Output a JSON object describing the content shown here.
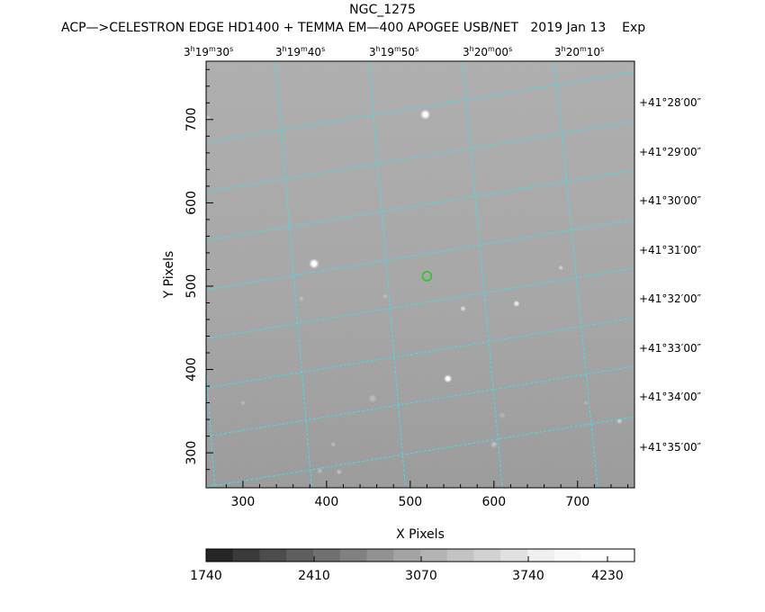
{
  "header": {
    "title": "NGC_1275",
    "subtitle": "ACP—>CELESTRON EDGE HD1400 + TEMMA EM—400 APOGEE USB/NET   2019 Jan 13    Exp"
  },
  "axes": {
    "xlabel": "X Pixels",
    "ylabel": "Y Pixels",
    "xlim": [
      256,
      768
    ],
    "ylim": [
      258,
      770
    ],
    "x_ticks": [
      300,
      400,
      500,
      600,
      700
    ],
    "y_ticks": [
      300,
      400,
      500,
      600,
      700
    ]
  },
  "ra_labels": [
    {
      "h": "3",
      "m": "19",
      "s": "30"
    },
    {
      "h": "3",
      "m": "19",
      "s": "40"
    },
    {
      "h": "3",
      "m": "19",
      "s": "50"
    },
    {
      "h": "3",
      "m": "20",
      "s": "00"
    },
    {
      "h": "3",
      "m": "20",
      "s": "10"
    }
  ],
  "dec_labels": [
    {
      "d": "+41",
      "m": "28",
      "s": "00"
    },
    {
      "d": "+41",
      "m": "29",
      "s": "00"
    },
    {
      "d": "+41",
      "m": "30",
      "s": "00"
    },
    {
      "d": "+41",
      "m": "31",
      "s": "00"
    },
    {
      "d": "+41",
      "m": "32",
      "s": "00"
    },
    {
      "d": "+41",
      "m": "33",
      "s": "00"
    },
    {
      "d": "+41",
      "m": "34",
      "s": "00"
    },
    {
      "d": "+41",
      "m": "35",
      "s": "00"
    }
  ],
  "colorbar": {
    "tick_labels": [
      "1740",
      "2410",
      "3070",
      "3740",
      "4230"
    ],
    "shades": [
      "#262626",
      "#3a3a3a",
      "#4c4c4c",
      "#5e5e5e",
      "#707070",
      "#818181",
      "#929292",
      "#a3a3a3",
      "#b3b3b3",
      "#c3c3c3",
      "#d2d2d2",
      "#e1e1e1",
      "#efefef",
      "#f8f8f8",
      "#ffffff",
      "#ffffff"
    ]
  },
  "colors": {
    "grid": "#40e0e8",
    "marker": "#22cc22",
    "frame": "#000000"
  },
  "stars": [
    {
      "x": 518,
      "y": 706,
      "b": 1.0,
      "r": 3.2
    },
    {
      "x": 385,
      "y": 527,
      "b": 1.0,
      "r": 3.2
    },
    {
      "x": 545,
      "y": 389,
      "b": 0.95,
      "r": 2.6
    },
    {
      "x": 627,
      "y": 479,
      "b": 0.8,
      "r": 2.0
    },
    {
      "x": 563,
      "y": 473,
      "b": 0.6,
      "r": 1.8
    },
    {
      "x": 680,
      "y": 522,
      "b": 0.5,
      "r": 1.6
    },
    {
      "x": 750,
      "y": 338,
      "b": 0.5,
      "r": 1.8
    },
    {
      "x": 600,
      "y": 310,
      "b": 0.35,
      "r": 2.2
    },
    {
      "x": 455,
      "y": 365,
      "b": 0.3,
      "r": 2.6
    },
    {
      "x": 415,
      "y": 277,
      "b": 0.35,
      "r": 1.8
    },
    {
      "x": 392,
      "y": 278,
      "b": 0.3,
      "r": 1.8
    },
    {
      "x": 408,
      "y": 310,
      "b": 0.3,
      "r": 1.6
    },
    {
      "x": 370,
      "y": 485,
      "b": 0.3,
      "r": 1.6
    },
    {
      "x": 470,
      "y": 488,
      "b": 0.25,
      "r": 1.6
    },
    {
      "x": 300,
      "y": 360,
      "b": 0.25,
      "r": 1.6
    },
    {
      "x": 258,
      "y": 702,
      "b": 0.35,
      "r": 1.8
    },
    {
      "x": 610,
      "y": 345,
      "b": 0.2,
      "r": 2.2
    },
    {
      "x": 710,
      "y": 360,
      "b": 0.2,
      "r": 1.6
    }
  ],
  "target": {
    "x": 520,
    "y": 512
  }
}
